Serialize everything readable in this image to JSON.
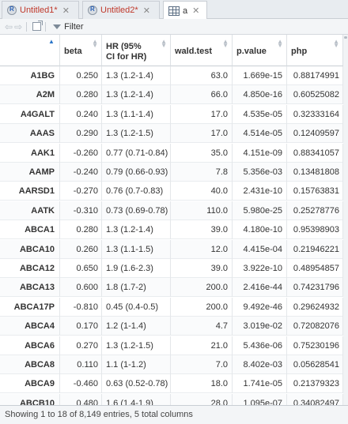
{
  "tabs": [
    {
      "label": "Untitled1*",
      "icon": "rscript-icon",
      "active": false
    },
    {
      "label": "Untitled2*",
      "icon": "rscript-icon",
      "active": false
    },
    {
      "label": "a",
      "icon": "data-grid-icon",
      "active": true
    }
  ],
  "toolbar": {
    "filter_label": "Filter"
  },
  "table": {
    "columns": [
      "beta",
      "HR (95%",
      "CI for HR)",
      "wald.test",
      "p.value",
      "php"
    ],
    "rows": [
      {
        "name": "A1BG",
        "beta": "0.250",
        "hr": "1.3 (1.2-1.4)",
        "wald": "63.0",
        "p": "1.669e-15",
        "php": "0.88174991"
      },
      {
        "name": "A2M",
        "beta": "0.280",
        "hr": "1.3 (1.2-1.4)",
        "wald": "66.0",
        "p": "4.850e-16",
        "php": "0.60525082"
      },
      {
        "name": "A4GALT",
        "beta": "0.240",
        "hr": "1.3 (1.1-1.4)",
        "wald": "17.0",
        "p": "4.535e-05",
        "php": "0.32333164"
      },
      {
        "name": "AAAS",
        "beta": "0.290",
        "hr": "1.3 (1.2-1.5)",
        "wald": "17.0",
        "p": "4.514e-05",
        "php": "0.12409597"
      },
      {
        "name": "AAK1",
        "beta": "-0.260",
        "hr": "0.77 (0.71-0.84)",
        "wald": "35.0",
        "p": "4.151e-09",
        "php": "0.88341057"
      },
      {
        "name": "AAMP",
        "beta": "-0.240",
        "hr": "0.79 (0.66-0.93)",
        "wald": "7.8",
        "p": "5.356e-03",
        "php": "0.13481808"
      },
      {
        "name": "AARSD1",
        "beta": "-0.270",
        "hr": "0.76 (0.7-0.83)",
        "wald": "40.0",
        "p": "2.431e-10",
        "php": "0.15763831"
      },
      {
        "name": "AATK",
        "beta": "-0.310",
        "hr": "0.73 (0.69-0.78)",
        "wald": "110.0",
        "p": "5.980e-25",
        "php": "0.25278776"
      },
      {
        "name": "ABCA1",
        "beta": "0.280",
        "hr": "1.3 (1.2-1.4)",
        "wald": "39.0",
        "p": "4.180e-10",
        "php": "0.95398903"
      },
      {
        "name": "ABCA10",
        "beta": "0.260",
        "hr": "1.3 (1.1-1.5)",
        "wald": "12.0",
        "p": "4.415e-04",
        "php": "0.21946221"
      },
      {
        "name": "ABCA12",
        "beta": "0.650",
        "hr": "1.9 (1.6-2.3)",
        "wald": "39.0",
        "p": "3.922e-10",
        "php": "0.48954857"
      },
      {
        "name": "ABCA13",
        "beta": "0.600",
        "hr": "1.8 (1.7-2)",
        "wald": "200.0",
        "p": "2.416e-44",
        "php": "0.74231796"
      },
      {
        "name": "ABCA17P",
        "beta": "-0.810",
        "hr": "0.45 (0.4-0.5)",
        "wald": "200.0",
        "p": "9.492e-46",
        "php": "0.29624932"
      },
      {
        "name": "ABCA4",
        "beta": "0.170",
        "hr": "1.2 (1-1.4)",
        "wald": "4.7",
        "p": "3.019e-02",
        "php": "0.72082076"
      },
      {
        "name": "ABCA6",
        "beta": "0.270",
        "hr": "1.3 (1.2-1.5)",
        "wald": "21.0",
        "p": "5.436e-06",
        "php": "0.75230196"
      },
      {
        "name": "ABCA8",
        "beta": "0.110",
        "hr": "1.1 (1-1.2)",
        "wald": "7.0",
        "p": "8.402e-03",
        "php": "0.05628541"
      },
      {
        "name": "ABCA9",
        "beta": "-0.460",
        "hr": "0.63 (0.52-0.78)",
        "wald": "18.0",
        "p": "1.741e-05",
        "php": "0.21379323"
      },
      {
        "name": "ABCB10",
        "beta": "0.480",
        "hr": "1.6 (1.4-1.9)",
        "wald": "28.0",
        "p": "1.095e-07",
        "php": "0.34082497"
      }
    ]
  },
  "status": {
    "text": "Showing 1 to 18 of 8,149 entries, 5 total columns"
  }
}
